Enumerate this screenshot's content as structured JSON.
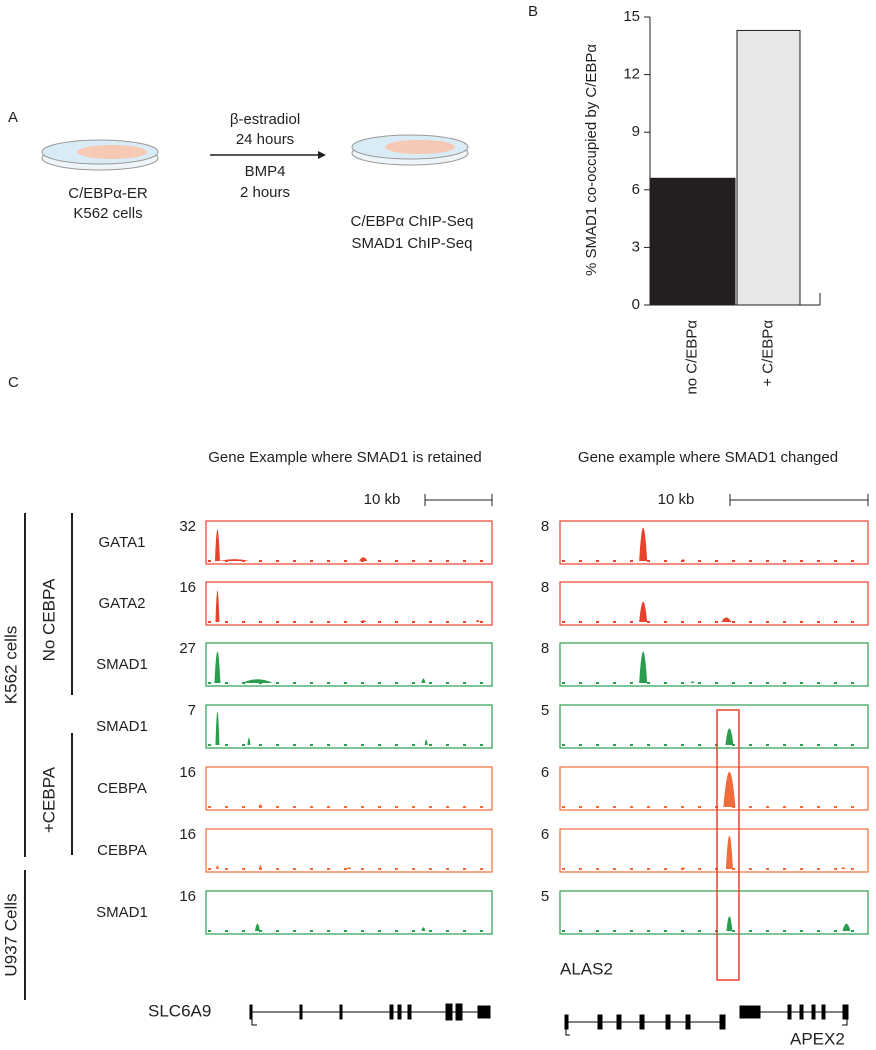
{
  "chart_data": {
    "type": "bar",
    "panel_label": "B",
    "ylabel": "% SMAD1 co-occupied by C/EBPα",
    "categories": [
      "no C/EBPα",
      "+ C/EBPα"
    ],
    "values": [
      6.6,
      14.3
    ],
    "colors": [
      "#231f20",
      "#e6e7e8"
    ],
    "ylim": [
      0,
      15
    ],
    "yticks": [
      0,
      3,
      6,
      9,
      12,
      15
    ],
    "grid": false
  },
  "panel_a": {
    "label": "A",
    "start_cells": [
      "C/EBPα-ER",
      "K562 cells"
    ],
    "treatment_top": [
      "β-estradiol",
      "24 hours"
    ],
    "treatment_bottom": [
      "BMP4",
      "2 hours"
    ],
    "assays": [
      "C/EBPα ChIP-Seq",
      "SMAD1 ChIP-Seq"
    ]
  },
  "panel_c": {
    "label": "C",
    "titles": [
      "Gene Example where SMAD1 is retained",
      "Gene example where SMAD1 changed"
    ],
    "scale": [
      "10 kb",
      "10 kb"
    ],
    "groups": [
      "K562 cells",
      "No CEBPA",
      "+CEBPA",
      "U937 Cells"
    ],
    "tracks": [
      {
        "name": "GATA1",
        "left_max": 32,
        "right_max": 8
      },
      {
        "name": "GATA2",
        "left_max": 16,
        "right_max": 8
      },
      {
        "name": "SMAD1",
        "left_max": 27,
        "right_max": 8
      },
      {
        "name": "SMAD1",
        "left_max": 7,
        "right_max": 5
      },
      {
        "name": "CEBPA",
        "left_max": 16,
        "right_max": 6
      },
      {
        "name": "CEBPA",
        "left_max": 16,
        "right_max": 6
      },
      {
        "name": "SMAD1",
        "left_max": 16,
        "right_max": 5
      }
    ],
    "genes": [
      "SLC6A9",
      "ALAS2",
      "APEX2"
    ]
  }
}
